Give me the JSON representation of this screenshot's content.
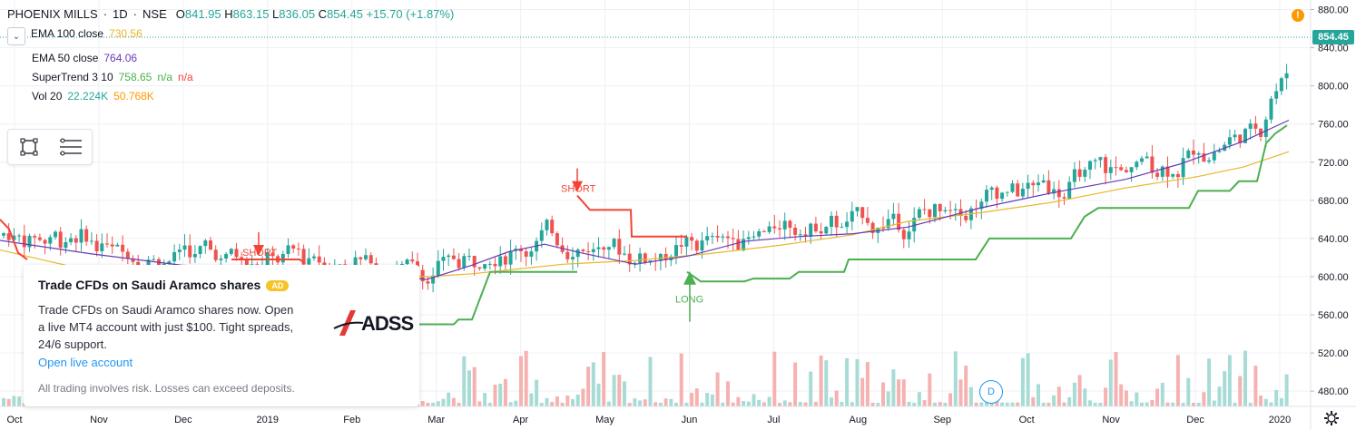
{
  "legend": {
    "symbol": "PHOENIX MILLS",
    "interval": "1D",
    "exchange": "NSE",
    "sep1": "·",
    "sep2": "·",
    "o_label": "O",
    "o_value": "841.95",
    "h_label": "H",
    "h_value": "863.15",
    "l_label": "L",
    "l_value": "836.05",
    "c_label": "C",
    "c_value": "854.45",
    "change": "+15.70 (+1.87%)",
    "indicators": [
      {
        "name": "EMA 100 close",
        "values": [
          "730.56"
        ],
        "colors": [
          "#e8b72b"
        ]
      },
      {
        "name": "EMA 50 close",
        "values": [
          "764.06"
        ],
        "colors": [
          "#673ab7"
        ]
      },
      {
        "name": "SuperTrend 3 10",
        "values": [
          "758.65",
          "n/a",
          "n/a"
        ],
        "colors": [
          "#4caf50",
          "#4caf50",
          "#f44336"
        ]
      },
      {
        "name": "Vol 20",
        "values": [
          "22.224K",
          "50.768K"
        ],
        "colors": [
          "#26a69a",
          "#ff9800"
        ]
      }
    ]
  },
  "toolbox": {
    "icons": [
      "rectangle-select-icon",
      "list-menu-icon"
    ]
  },
  "ad": {
    "title": "Trade CFDs on Saudi Aramco shares",
    "badge": "AD",
    "body": "Trade CFDs on Saudi Aramco shares now. Open a live MT4 account with just $100. Tight spreads, 24/6 support.",
    "link": "Open live account",
    "disclaimer": "All trading involves risk. Losses can exceed deposits.",
    "logo": "ADSS"
  },
  "price_label": "854.45",
  "dividend_marker": "D",
  "signals": [
    {
      "label": "SHORT",
      "color": "#f44336"
    },
    {
      "label": "SHORT",
      "color": "#f44336"
    },
    {
      "label": "LONG",
      "color": "#4caf50"
    }
  ],
  "colors": {
    "up": "#26a69a",
    "down": "#ef5350",
    "ema100": "#e8b72b",
    "ema50": "#673ab7",
    "supertrend_up": "#4caf50",
    "supertrend_down": "#f44336",
    "vol_up": "#a7dcd6",
    "vol_down": "#f5b2b1",
    "grid": "#eef0f4"
  },
  "chart_data": {
    "type": "candlestick",
    "title": "PHOENIX MILLS · 1D · NSE",
    "y_axis": {
      "ticks": [
        "880.00",
        "840.00",
        "800.00",
        "760.00",
        "720.00",
        "680.00",
        "640.00",
        "600.00",
        "560.00",
        "520.00",
        "480.00"
      ],
      "range": [
        464,
        890
      ]
    },
    "x_axis": {
      "ticks": [
        "Oct",
        "Nov",
        "Dec",
        "2019",
        "Feb",
        "Mar",
        "Apr",
        "May",
        "Jun",
        "Jul",
        "Aug",
        "Sep",
        "Oct",
        "Nov",
        "Dec",
        "2020"
      ]
    },
    "last_price": 854.45,
    "ema100_anchors": [
      [
        0,
        628
      ],
      [
        100,
        606
      ],
      [
        200,
        600
      ],
      [
        300,
        602
      ],
      [
        400,
        605
      ],
      [
        470,
        600
      ],
      [
        520,
        603
      ],
      [
        560,
        607
      ],
      [
        620,
        613
      ],
      [
        700,
        617
      ],
      [
        780,
        624
      ],
      [
        860,
        633
      ],
      [
        940,
        644
      ],
      [
        1000,
        658
      ],
      [
        1080,
        667
      ],
      [
        1160,
        678
      ],
      [
        1240,
        693
      ],
      [
        1320,
        705
      ],
      [
        1370,
        715
      ],
      [
        1420,
        731
      ]
    ],
    "ema50_anchors": [
      [
        0,
        638
      ],
      [
        100,
        624
      ],
      [
        200,
        612
      ],
      [
        300,
        608
      ],
      [
        400,
        606
      ],
      [
        470,
        597
      ],
      [
        520,
        612
      ],
      [
        560,
        626
      ],
      [
        600,
        634
      ],
      [
        640,
        625
      ],
      [
        700,
        613
      ],
      [
        760,
        622
      ],
      [
        820,
        637
      ],
      [
        880,
        642
      ],
      [
        940,
        645
      ],
      [
        1000,
        652
      ],
      [
        1080,
        672
      ],
      [
        1160,
        688
      ],
      [
        1240,
        702
      ],
      [
        1300,
        718
      ],
      [
        1370,
        742
      ],
      [
        1420,
        764
      ]
    ],
    "supertrend_segments": [
      {
        "dir": "down",
        "points": [
          [
            0,
            660
          ],
          [
            10,
            650
          ],
          [
            20,
            625
          ],
          [
            30,
            618
          ]
        ]
      },
      {
        "dir": "down",
        "points": [
          [
            255,
            618
          ],
          [
            330,
            618
          ],
          [
            335,
            615
          ]
        ]
      },
      {
        "dir": "up",
        "points": [
          [
            460,
            550
          ],
          [
            500,
            550
          ],
          [
            505,
            555
          ],
          [
            520,
            555
          ],
          [
            530,
            580
          ],
          [
            540,
            605
          ],
          [
            636,
            605
          ]
        ]
      },
      {
        "dir": "down",
        "points": [
          [
            636,
            685
          ],
          [
            650,
            670
          ],
          [
            695,
            670
          ],
          [
            696,
            642
          ],
          [
            757,
            642
          ]
        ]
      },
      {
        "dir": "up",
        "points": [
          [
            757,
            605
          ],
          [
            772,
            595
          ],
          [
            820,
            595
          ],
          [
            830,
            598
          ],
          [
            870,
            598
          ],
          [
            880,
            605
          ],
          [
            930,
            605
          ],
          [
            935,
            618
          ],
          [
            1075,
            618
          ],
          [
            1090,
            640
          ],
          [
            1180,
            640
          ],
          [
            1195,
            663
          ],
          [
            1210,
            672
          ],
          [
            1310,
            672
          ],
          [
            1320,
            690
          ],
          [
            1355,
            690
          ],
          [
            1365,
            700
          ],
          [
            1385,
            700
          ],
          [
            1395,
            740
          ],
          [
            1405,
            750
          ],
          [
            1418,
            758.65
          ]
        ]
      }
    ],
    "signal_points": [
      {
        "label": "SHORT",
        "x_day": 636,
        "price": 685,
        "dir": "down"
      },
      {
        "label": "SHORT",
        "x_day": 285,
        "price": 618,
        "dir": "down"
      },
      {
        "label": "LONG",
        "x_day": 760,
        "price": 605,
        "dir": "up"
      }
    ]
  }
}
